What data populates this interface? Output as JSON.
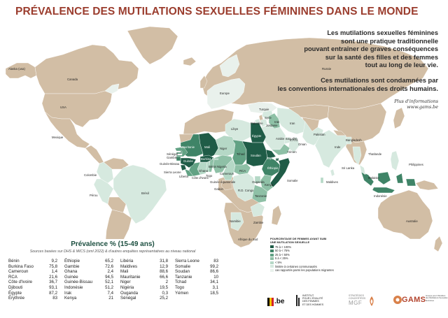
{
  "title": "PRÉVALENCE DES MUTILATIONS SEXUELLES FÉMININES DANS LE MONDE",
  "intro": {
    "paragraph1": [
      "Les mutilations sexuelles féminines",
      "sont une pratique traditionnelle",
      "pouvant entraîner de graves conséquences",
      "sur la santé des filles et des femmes",
      "tout au long de leur vie."
    ],
    "paragraph2": [
      "Ces mutilations sont condamnées par",
      "les conventions internationales des droits humains."
    ],
    "more_info_label": "Plus d'informations",
    "website": "www.gams.be"
  },
  "colors": {
    "title": "#9b3d2e",
    "ocean": "#ffffff",
    "no_data_land": "#d2bea5",
    "cat_75_100": "#1f5c47",
    "cat_50_75": "#3f8467",
    "cat_25_50": "#62a284",
    "cat_5_25": "#8ec0a6",
    "cat_lt5": "#b5d8c6",
    "cat_limited": "#d6e9df",
    "cat_migrants": "#e9f1ec"
  },
  "map": {
    "labels": {
      "alaska": "Alaska (usa)",
      "canada": "Canada",
      "usa": "USA",
      "mexique": "Mexique",
      "colombie": "Colombie",
      "perou": "Pérou",
      "bresil": "Brésil",
      "europe": "Europe",
      "russie": "Russie",
      "turquie": "Turquie",
      "syrie": "Syrie",
      "irak": "Irak",
      "jordanie": "Jordanie",
      "palestine": "Palestine",
      "iran": "Iran",
      "pakistan": "Pakistan",
      "inde": "Inde",
      "bangladesh": "Bangladesh",
      "thailande": "Thaïlande",
      "sri_lanka": "Sri Lanka",
      "maldives": "Maldives",
      "malaisie": "Malaisie",
      "indonesie": "Indonésie",
      "philippines": "Philippines",
      "australie": "Australie",
      "arabie_saoudite": "Arabie Saoudite",
      "eau": "E.A.U.",
      "oman": "Oman",
      "yemen": "Yémen",
      "libye": "Libye",
      "egypte": "Égypte",
      "soudan": "Soudan",
      "erythree": "Érythrée",
      "ethiopie": "Éthiopie",
      "somalie": "Somalie",
      "kenya": "Kenya",
      "ouganda": "Ouganda",
      "tanzanie": "Tanzanie",
      "tchad": "Tchad",
      "niger": "Niger",
      "mali": "Mali",
      "mauritanie": "Mauritanie",
      "senegal": "Sénégal",
      "gambie": "Gambie",
      "guinee_bissau": "Guinée-Bissau",
      "guinee": "Guinée",
      "sierra_leone": "Sierra Leone",
      "liberia": "Liberia",
      "cote_ivoire": "Côte d'Ivoire",
      "burkina": "Burkina Faso",
      "ghana": "Ghana",
      "togo": "Togo",
      "benin": "Bénin",
      "nigeria": "Nigeria",
      "cameroun": "Cameroun",
      "rca": "RCA",
      "guinee_equatoriale": "Guinée équatoriale",
      "gabon": "Gabon",
      "rd_congo": "R.D. Congo",
      "zambie": "Zambie",
      "namibie": "Namibie",
      "afrique_du_sud": "Afrique du Sud"
    }
  },
  "prevalence": {
    "title": "Prévalence % (15-49 ans)",
    "source": "Sources basées sur DHS & MICS (oml 2022) & d'autres enquêtes représentatives au niveau national",
    "columns": [
      [
        {
          "country": "Bénin",
          "value": "9,2"
        },
        {
          "country": "Burkina Faso",
          "value": "75,8"
        },
        {
          "country": "Cameroun",
          "value": "1,4"
        },
        {
          "country": "RCA",
          "value": "21,6"
        },
        {
          "country": "Côte d'Ivoire",
          "value": "36,7"
        },
        {
          "country": "Djibouti",
          "value": "93,1"
        },
        {
          "country": "Égypte",
          "value": "87,2"
        },
        {
          "country": "Érythrée",
          "value": "83"
        }
      ],
      [
        {
          "country": "Éthiopie",
          "value": "65,2"
        },
        {
          "country": "Gambie",
          "value": "72,6"
        },
        {
          "country": "Ghana",
          "value": "2,4"
        },
        {
          "country": "Guinée",
          "value": "94,5"
        },
        {
          "country": "Guinée-Bissau",
          "value": "52,1"
        },
        {
          "country": "Indonésie",
          "value": "51,2"
        },
        {
          "country": "Irak",
          "value": "7,4"
        },
        {
          "country": "Kenya",
          "value": "21"
        }
      ],
      [
        {
          "country": "Libéria",
          "value": "31,8"
        },
        {
          "country": "Maldives",
          "value": "12,9"
        },
        {
          "country": "Mali",
          "value": "88,6"
        },
        {
          "country": "Mauritanie",
          "value": "66,6"
        },
        {
          "country": "Niger",
          "value": "2"
        },
        {
          "country": "Nigéria",
          "value": "19,5"
        },
        {
          "country": "Ouganda",
          "value": "0,3"
        },
        {
          "country": "Sénégal",
          "value": "25,2"
        }
      ],
      [
        {
          "country": "Sierra Leone",
          "value": "83"
        },
        {
          "country": "Somalie",
          "value": "99,2"
        },
        {
          "country": "Soudan",
          "value": "86,6"
        },
        {
          "country": "Tanzanie",
          "value": "10"
        },
        {
          "country": "Tchad",
          "value": "34,1"
        },
        {
          "country": "Togo",
          "value": "3,1"
        },
        {
          "country": "Yémen",
          "value": "18,5"
        }
      ]
    ]
  },
  "legend": {
    "title_line1": "POURCENTAGE DE FEMMES AYANT SUBI",
    "title_line2": "UNE MUTILATION SEXUELLE",
    "items": [
      {
        "label": "75 à < 100%",
        "color": "#1f5c47"
      },
      {
        "label": "50 à < 75%",
        "color": "#3f8467"
      },
      {
        "label": "25 à < 50%",
        "color": "#62a284"
      },
      {
        "label": "5 à < 25%",
        "color": "#8ec0a6"
      },
      {
        "label": "< 5%",
        "color": "#b5d8c6"
      },
      {
        "label": "limitée à certaines communautés",
        "color": "#d6e9df"
      },
      {
        "label": "cas rapportés parmi les populations migrantes",
        "color": "#e9f1ec"
      }
    ]
  },
  "logos": {
    "belgium": ".be",
    "institut": [
      "INSTITUT",
      "POUR L'ÉGALITÉ",
      "DES FEMMES",
      "ET DES HOMMES"
    ],
    "strategies": [
      "STRATÉGIES",
      "CONCERTÉES"
    ],
    "mgf": "MGF",
    "gams": "GAMS",
    "gams_sub": [
      "Groupe pour l'Abolition",
      "des Mutilations Sexuelles",
      "féminines"
    ]
  }
}
